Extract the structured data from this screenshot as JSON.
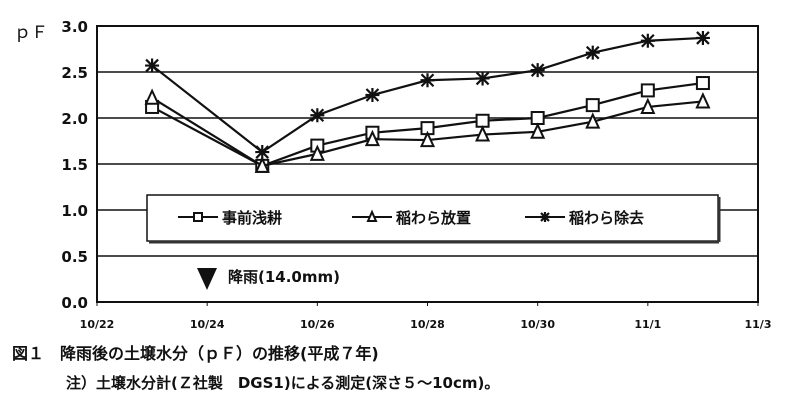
{
  "chart_data": {
    "type": "line",
    "ylabel": "ｐＦ",
    "ylim": [
      0,
      3.0
    ],
    "yticks": [
      "0.0",
      "0.5",
      "1.0",
      "1.5",
      "2.0",
      "2.5",
      "3.0"
    ],
    "xticks": [
      "10/22",
      "10/24",
      "10/26",
      "10/28",
      "10/30",
      "11/1",
      "11/3"
    ],
    "xrange_days": [
      0,
      12
    ],
    "grid": true,
    "legend_position": "center-bottom",
    "x_days": [
      1,
      3,
      4,
      5,
      6,
      7,
      8,
      9,
      10,
      11
    ],
    "x_labels_note": "day offset from 10/22",
    "series": [
      {
        "name": "事前浅耕",
        "marker": "square",
        "values": [
          2.12,
          1.48,
          1.7,
          1.84,
          1.89,
          1.97,
          2.0,
          2.14,
          2.3,
          2.38
        ]
      },
      {
        "name": "稲わら放置",
        "marker": "triangle",
        "values": [
          2.22,
          1.48,
          1.61,
          1.77,
          1.76,
          1.82,
          1.85,
          1.96,
          2.12,
          2.18
        ]
      },
      {
        "name": "稲わら除去",
        "marker": "asterisk",
        "values": [
          2.57,
          1.63,
          2.03,
          2.25,
          2.41,
          2.43,
          2.52,
          2.71,
          2.84,
          2.87
        ]
      }
    ],
    "annotation": {
      "label": "降雨(14.0mm)",
      "day": 2
    }
  },
  "caption": {
    "title": "図１　降雨後の土壌水分（ｐＦ）の推移(平成７年)",
    "note": "注）土壌水分計(Ｚ社製　DGS1)による測定(深さ５～10cm)。"
  }
}
